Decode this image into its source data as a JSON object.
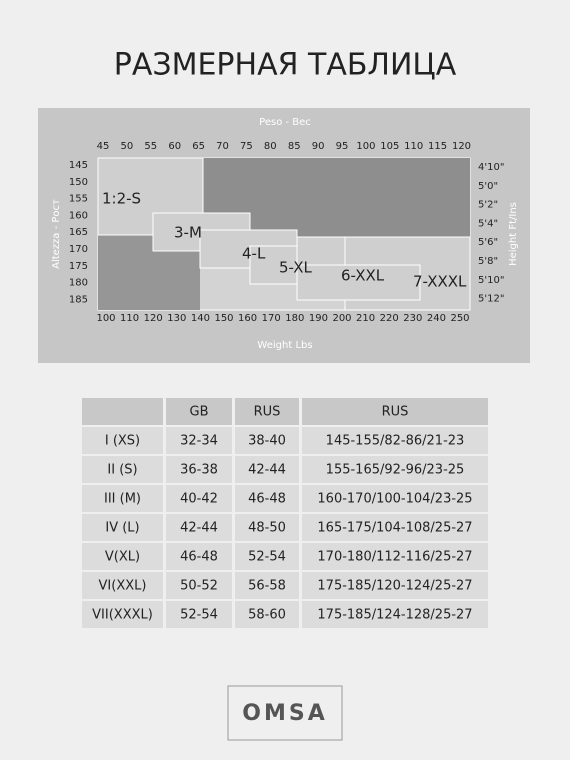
{
  "header": {
    "title": "РАЗМЕРНАЯ ТАБЛИЦА"
  },
  "diagram": {
    "top_axis_label": "Peso - Вес",
    "top_ticks": [
      "45",
      "50",
      "55",
      "60",
      "65",
      "70",
      "75",
      "80",
      "85",
      "90",
      "95",
      "100",
      "105",
      "110",
      "115",
      "120"
    ],
    "bottom_axis_label": "Weight Lbs",
    "bottom_ticks": [
      "100",
      "110",
      "120",
      "130",
      "140",
      "150",
      "160",
      "170",
      "180",
      "190",
      "200",
      "210",
      "220",
      "230",
      "240",
      "250"
    ],
    "left_axis_label": "Altezza - Рост",
    "left_ticks": [
      "145",
      "150",
      "155",
      "160",
      "165",
      "170",
      "175",
      "180",
      "185"
    ],
    "right_axis_label": "Height Ft/Ins",
    "right_ticks": [
      "4'10\"",
      "5'0\"",
      "5'2\"",
      "5'4\"",
      "5'6\"",
      "5'8\"",
      "5'10\"",
      "5'12\""
    ],
    "zones": [
      "1:2-S",
      "3-M",
      "4-L",
      "5-XL",
      "6-XXL",
      "7-XXXL"
    ]
  },
  "table": {
    "header": [
      "",
      "GB",
      "RUS",
      "RUS"
    ],
    "rows": [
      [
        "I (XS)",
        "32-34",
        "38-40",
        "145-155/82-86/21-23"
      ],
      [
        "II (S)",
        "36-38",
        "42-44",
        "155-165/92-96/23-25"
      ],
      [
        "III (M)",
        "40-42",
        "46-48",
        "160-170/100-104/23-25"
      ],
      [
        "IV (L)",
        "42-44",
        "48-50",
        "165-175/104-108/25-27"
      ],
      [
        "V(XL)",
        "46-48",
        "52-54",
        "170-180/112-116/25-27"
      ],
      [
        "VI(XXL)",
        "50-52",
        "56-58",
        "175-185/120-124/25-27"
      ],
      [
        "VII(XXXL)",
        "52-54",
        "58-60",
        "175-185/124-128/25-27"
      ]
    ]
  },
  "logo": {
    "text": "OMSA"
  }
}
